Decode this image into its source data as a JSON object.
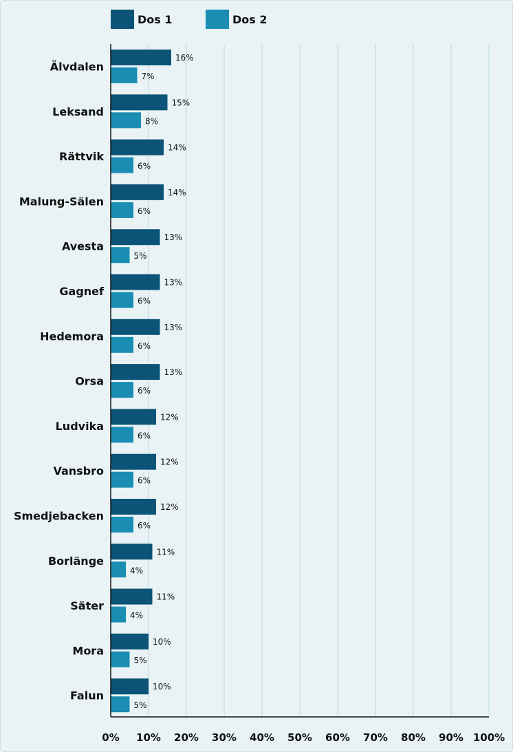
{
  "chart_data": {
    "type": "bar",
    "orientation": "horizontal",
    "categories": [
      "Älvdalen",
      "Leksand",
      "Rättvik",
      "Malung-Sälen",
      "Avesta",
      "Gagnef",
      "Hedemora",
      "Orsa",
      "Ludvika",
      "Vansbro",
      "Smedjebacken",
      "Borlänge",
      "Säter",
      "Mora",
      "Falun"
    ],
    "series": [
      {
        "name": "Dos 1",
        "color": "#0b5377",
        "values": [
          16,
          15,
          14,
          14,
          13,
          13,
          13,
          13,
          12,
          12,
          12,
          11,
          11,
          10,
          10
        ]
      },
      {
        "name": "Dos 2",
        "color": "#1a8db3",
        "values": [
          7,
          8,
          6,
          6,
          5,
          6,
          6,
          6,
          6,
          6,
          6,
          4,
          4,
          5,
          5
        ]
      }
    ],
    "data_labels": {
      "dos1": [
        "16%",
        "15%",
        "14%",
        "14%",
        "13%",
        "13%",
        "13%",
        "13%",
        "12%",
        "12%",
        "12%",
        "11%",
        "11%",
        "10%",
        "10%"
      ],
      "dos2": [
        "7%",
        "8%",
        "6%",
        "6%",
        "5%",
        "6%",
        "6%",
        "6%",
        "6%",
        "6%",
        "6%",
        "4%",
        "4%",
        "5%",
        "5%"
      ]
    },
    "xlim": [
      0,
      100
    ],
    "xticks": [
      0,
      10,
      20,
      30,
      40,
      50,
      60,
      70,
      80,
      90,
      100
    ],
    "xtick_labels": [
      "0%",
      "10%",
      "20%",
      "30%",
      "40%",
      "50%",
      "60%",
      "70%",
      "80%",
      "90%",
      "100%"
    ],
    "grid": true,
    "legend_position": "top-left",
    "title": "",
    "xlabel": "",
    "ylabel": ""
  }
}
